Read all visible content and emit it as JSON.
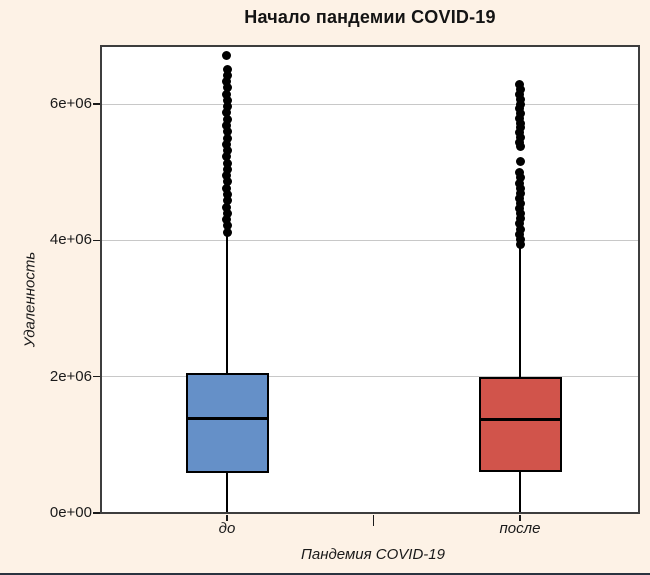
{
  "title": "Начало пандемии COVID-19",
  "colors": {
    "background": "#fdf2e6",
    "panel_background": "#ffffff",
    "panel_border": "#3d3d3d",
    "gridline": "#c8c8c8",
    "box_before": "#6590c8",
    "box_after": "#d1544b",
    "box_outline": "#000000",
    "outlier": "#000000",
    "text": "#1a1a1a",
    "window_bottom_border": "#2a3340"
  },
  "chart_data": {
    "type": "boxplot",
    "title": "Начало пандемии COVID-19",
    "xlabel": "Пандемия COVID-19",
    "ylabel": "Удаленность",
    "ylim": [
      -100000,
      6880000
    ],
    "grid": "horizontal major gridlines only, light gray, white panel",
    "legend": "none",
    "yticks": [
      {
        "value": 0,
        "label": "0e+00"
      },
      {
        "value": 2000000,
        "label": "2e+06"
      },
      {
        "value": 4000000,
        "label": "4e+06"
      },
      {
        "value": 6000000,
        "label": "6e+06"
      }
    ],
    "groups": [
      {
        "label": "до",
        "fill_color": "#6590c8",
        "stats": {
          "whisker_low": 20000,
          "q1": 590000,
          "median": 1380000,
          "q3": 2060000,
          "whisker_high": 4120000
        },
        "outliers": [
          4120000,
          4212000,
          4304000,
          4396000,
          4488000,
          4580000,
          4672000,
          4764000,
          4856000,
          4948000,
          5040000,
          5132000,
          5224000,
          5316000,
          5408000,
          5500000,
          5592000,
          5684000,
          5776000,
          5868000,
          5960000,
          6052000,
          6144000,
          6236000,
          6328000,
          6420000,
          6512000,
          6710000
        ]
      },
      {
        "label": "после",
        "fill_color": "#d1544b",
        "stats": {
          "whisker_low": 20000,
          "q1": 600000,
          "median": 1370000,
          "q3": 2000000,
          "whisker_high": 3940000
        },
        "outliers": [
          3940000,
          4015000,
          4090000,
          4165000,
          4240000,
          4315000,
          4390000,
          4465000,
          4540000,
          4615000,
          4690000,
          4765000,
          4840000,
          4915000,
          4990000,
          5150000,
          5370000,
          5440000,
          5510000,
          5580000,
          5650000,
          5720000,
          5790000,
          5860000,
          5930000,
          6000000,
          6070000,
          6140000,
          6210000,
          6280000
        ]
      }
    ]
  }
}
